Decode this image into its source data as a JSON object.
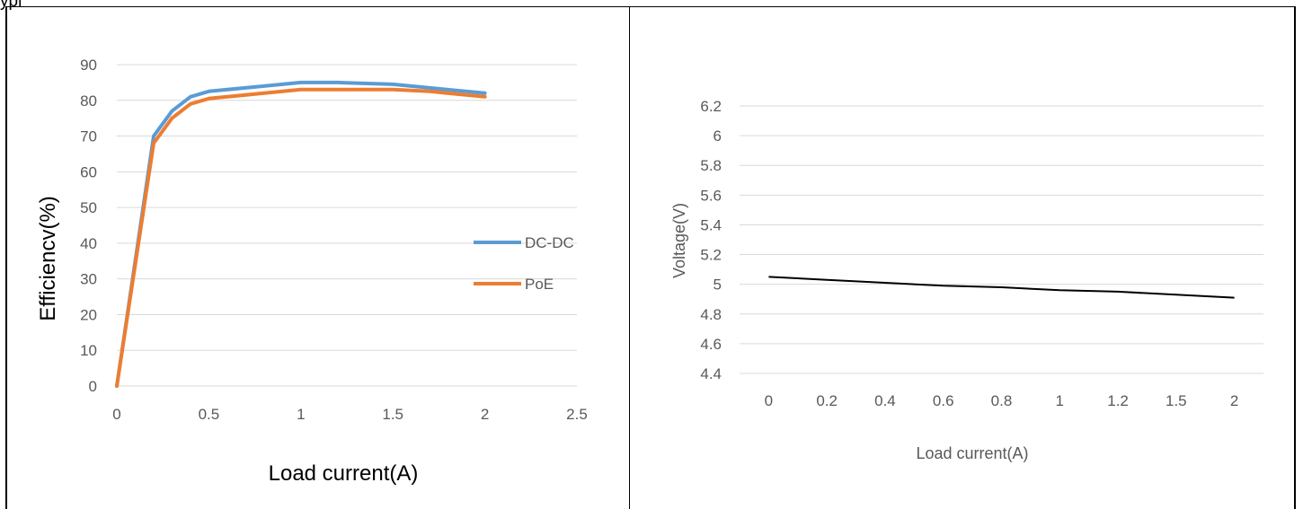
{
  "page_fragment": "ypi",
  "chart_data": [
    {
      "type": "line",
      "xlabel": "Load current(A)",
      "ylabel": "Efficiencv(%)",
      "xlim": [
        0,
        2.5
      ],
      "ylim": [
        0,
        90
      ],
      "x_ticks": [
        "0",
        "0.5",
        "1",
        "1.5",
        "2",
        "2.5"
      ],
      "y_ticks": [
        "0",
        "10",
        "20",
        "30",
        "40",
        "50",
        "60",
        "70",
        "80",
        "90"
      ],
      "grid": "horizontal",
      "legend": "right",
      "series": [
        {
          "name": "DC-DC",
          "color": "#5b9bd5",
          "x": [
            0,
            0.2,
            0.3,
            0.4,
            0.5,
            0.6,
            0.8,
            1.0,
            1.2,
            1.5,
            1.7,
            2.0
          ],
          "y": [
            0,
            70,
            77,
            81,
            82.5,
            83,
            84,
            85,
            85,
            84.5,
            83.5,
            82
          ]
        },
        {
          "name": "PoE",
          "color": "#ed7d31",
          "x": [
            0,
            0.2,
            0.3,
            0.4,
            0.5,
            0.6,
            0.8,
            1.0,
            1.2,
            1.5,
            1.7,
            2.0
          ],
          "y": [
            0,
            68,
            75,
            79,
            80.5,
            81,
            82,
            83,
            83,
            83,
            82.5,
            81
          ]
        }
      ]
    },
    {
      "type": "line",
      "xlabel": "Load current(A)",
      "ylabel": "Voltage(V)",
      "categories": [
        "0",
        "0.2",
        "0.4",
        "0.6",
        "0.8",
        "1",
        "1.2",
        "1.5",
        "2"
      ],
      "ylim": [
        4.4,
        6.2
      ],
      "y_ticks": [
        "4.4",
        "4.6",
        "4.8",
        "5",
        "5.2",
        "5.4",
        "5.6",
        "5.8",
        "6",
        "6.2"
      ],
      "grid": "horizontal",
      "series": [
        {
          "color": "#000000",
          "values": [
            5.05,
            5.03,
            5.01,
            4.99,
            4.98,
            4.96,
            4.95,
            4.93,
            4.91
          ]
        }
      ]
    }
  ]
}
